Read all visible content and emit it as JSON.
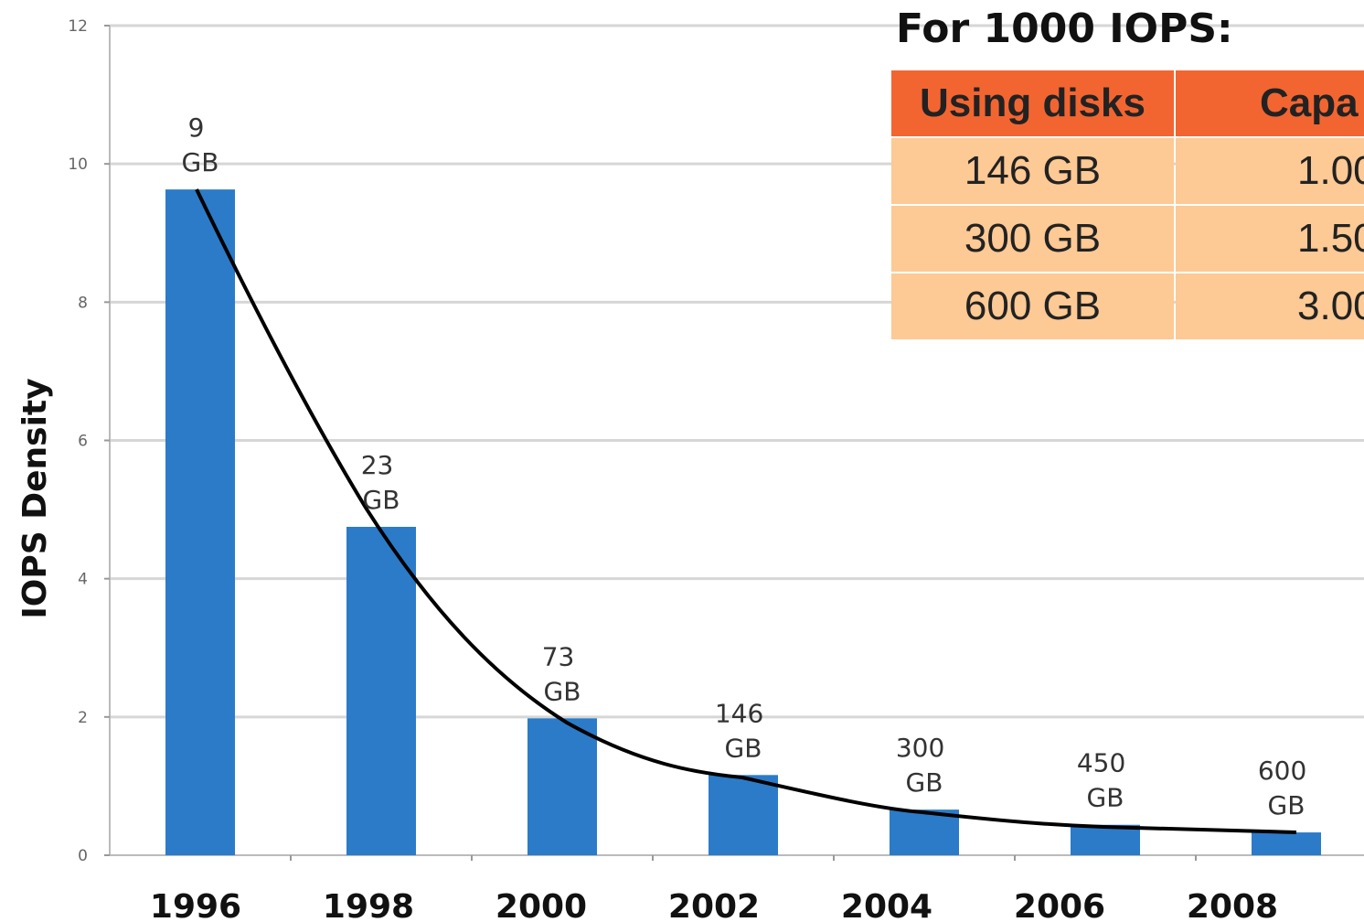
{
  "chart_data": {
    "type": "bar",
    "y_label": "IOPS Density",
    "categories": [
      "1996",
      "1998",
      "2000",
      "2002",
      "2004",
      "2006",
      "2008"
    ],
    "values": [
      9.63,
      4.75,
      1.98,
      1.16,
      0.66,
      0.44,
      0.33
    ],
    "capacities": [
      "9 GB",
      "23 GB",
      "73 GB",
      "146 GB",
      "300 GB",
      "450 GB",
      "600 GB"
    ],
    "color": "#2b7bc9",
    "ylim": [
      0,
      12
    ],
    "yticks": [
      0,
      2,
      4,
      6,
      8,
      10,
      12
    ],
    "grid": true
  },
  "table": {
    "title": "For 1000 IOPS:",
    "header": [
      "Using disks",
      "Capa"
    ],
    "rows": [
      [
        "146 GB",
        "1.00"
      ],
      [
        "300 GB",
        "1.50"
      ],
      [
        "600 GB",
        "3.00"
      ]
    ]
  }
}
